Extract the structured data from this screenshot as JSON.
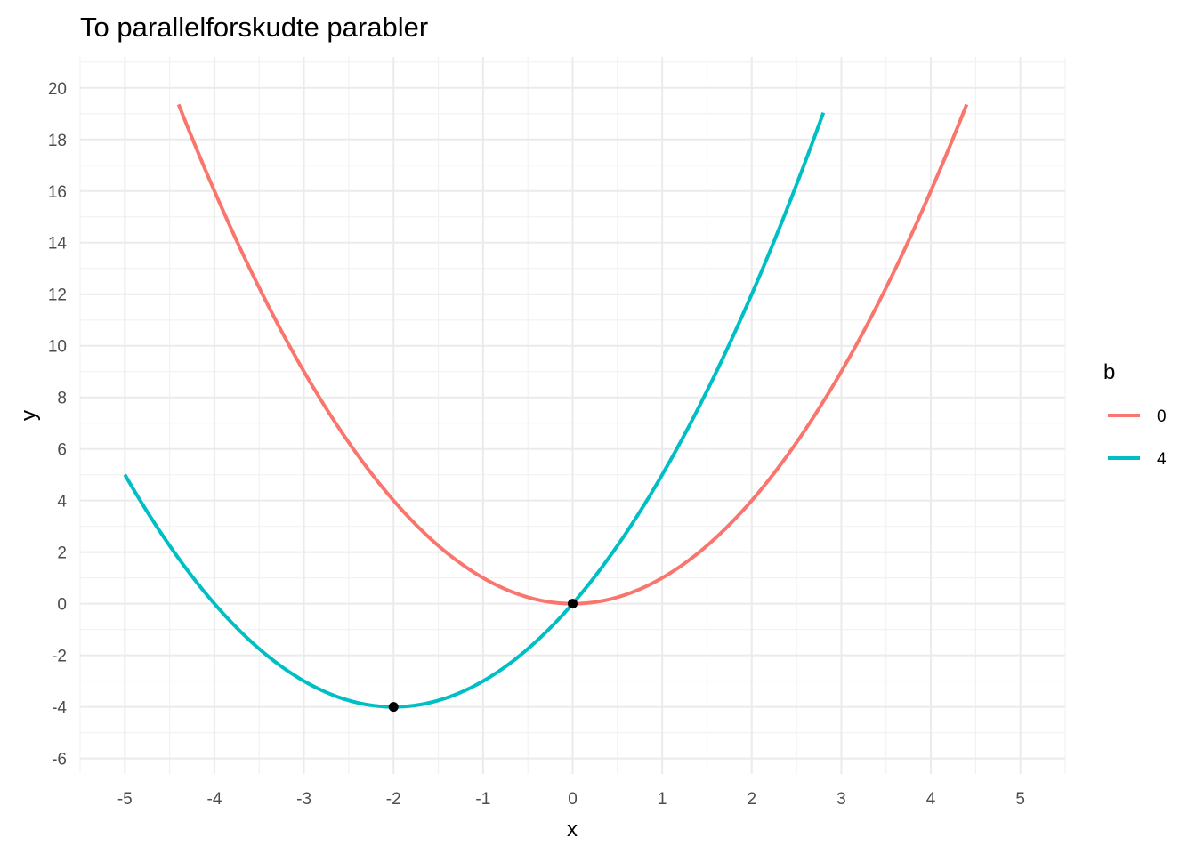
{
  "chart_data": {
    "type": "line",
    "title": "To parallelforskudte parabler",
    "xlabel": "x",
    "ylabel": "y",
    "xlim": [
      -5.5,
      5.5
    ],
    "ylim": [
      -6.6,
      21.2
    ],
    "x_ticks": [
      -5,
      -4,
      -3,
      -2,
      -1,
      0,
      1,
      2,
      3,
      4,
      5
    ],
    "y_ticks": [
      -6,
      -4,
      -2,
      0,
      2,
      4,
      6,
      8,
      10,
      12,
      14,
      16,
      18,
      20
    ],
    "x_tick_labels": [
      "-5",
      "-4",
      "-3",
      "-2",
      "-1",
      "0",
      "1",
      "2",
      "3",
      "4",
      "5"
    ],
    "y_tick_labels": [
      "-6",
      "-4",
      "-2",
      "0",
      "2",
      "4",
      "6",
      "8",
      "10",
      "12",
      "14",
      "16",
      "18",
      "20"
    ],
    "grid": true,
    "legend": {
      "title": "b",
      "position": "right",
      "entries": [
        {
          "label": "0",
          "color": "#F8766D"
        },
        {
          "label": "4",
          "color": "#00BFC4"
        }
      ]
    },
    "series": [
      {
        "name": "0",
        "color": "#F8766D",
        "x": [
          -4.4,
          -4.0,
          -3.5,
          -3.0,
          -2.5,
          -2.0,
          -1.5,
          -1.0,
          -0.5,
          0.0,
          0.5,
          1.0,
          1.5,
          2.0,
          2.5,
          3.0,
          3.5,
          4.0,
          4.4
        ],
        "y": [
          19.36,
          16.0,
          12.25,
          9.0,
          6.25,
          4.0,
          2.25,
          1.0,
          0.25,
          0.0,
          0.25,
          1.0,
          2.25,
          4.0,
          6.25,
          9.0,
          12.25,
          16.0,
          19.36
        ]
      },
      {
        "name": "4",
        "color": "#00BFC4",
        "x": [
          -5.0,
          -4.5,
          -4.0,
          -3.5,
          -3.0,
          -2.5,
          -2.0,
          -1.5,
          -1.0,
          -0.5,
          0.0,
          0.5,
          1.0,
          1.5,
          2.0,
          2.5,
          2.8
        ],
        "y": [
          5.0,
          2.25,
          0.0,
          -1.75,
          -3.0,
          -3.75,
          -4.0,
          -3.75,
          -3.0,
          -1.75,
          0.0,
          2.25,
          5.0,
          8.25,
          12.0,
          16.25,
          19.04
        ]
      }
    ],
    "points": [
      {
        "x": -2,
        "y": -4,
        "color": "#000000"
      },
      {
        "x": 0,
        "y": 0,
        "color": "#000000"
      }
    ]
  }
}
